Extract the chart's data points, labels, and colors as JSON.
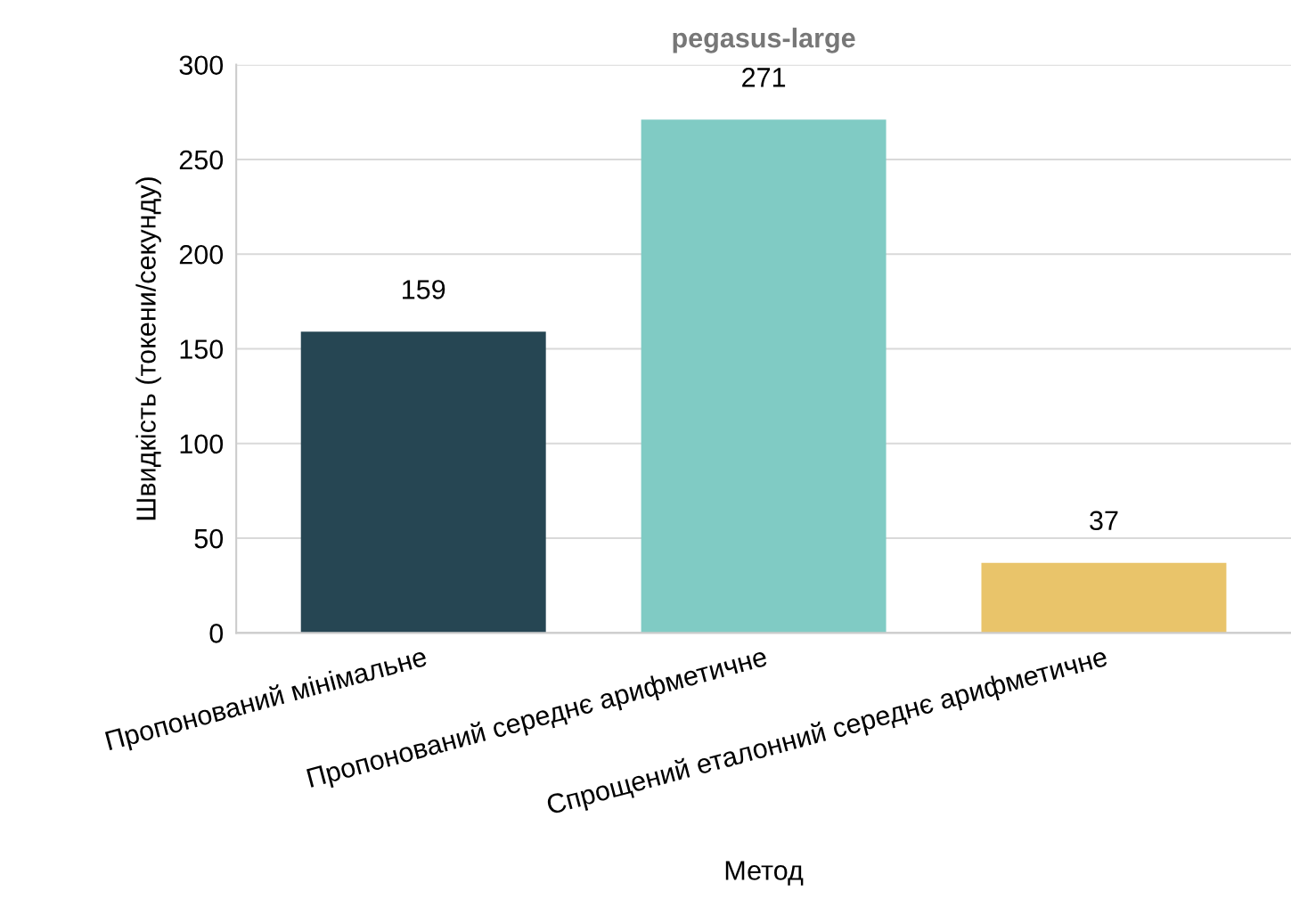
{
  "chart_data": {
    "type": "bar",
    "title": "pegasus-large",
    "xlabel": "Метод",
    "ylabel": "Швидкість (токени/секунду)",
    "categories": [
      "Пропонований мінімальне",
      "Пропонований середнє арифметичне",
      "Спрощений еталонний середнє арифметичне"
    ],
    "values": [
      159,
      271,
      37
    ],
    "colors": [
      "#264653",
      "#80cbc4",
      "#e9c46a"
    ],
    "ylim": [
      0,
      300
    ],
    "yticks": [
      0,
      50,
      100,
      150,
      200,
      250,
      300
    ],
    "grid": "y",
    "data_labels": true
  }
}
